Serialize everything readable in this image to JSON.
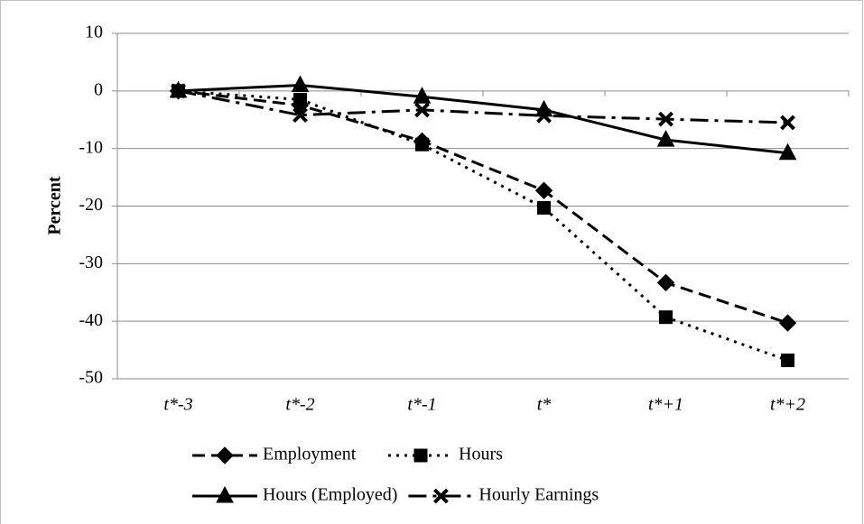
{
  "chart_data": {
    "type": "line",
    "y_label": "Percent",
    "categories": [
      "t*-3",
      "t*-2",
      "t*-1",
      "t*",
      "t*+1",
      "t*+2"
    ],
    "series": [
      {
        "name": "Employment",
        "color": "#000000",
        "dash": "dashed",
        "marker": "diamond",
        "values": [
          0,
          -2.5,
          -8.7,
          -17.3,
          -33.3,
          -40.3
        ]
      },
      {
        "name": "Hours",
        "color": "#000000",
        "dash": "dotted",
        "marker": "square",
        "values": [
          0,
          -1.5,
          -9.3,
          -20.3,
          -39.3,
          -46.8
        ]
      },
      {
        "name": "Hours (Employed)",
        "color": "#000000",
        "dash": "solid",
        "marker": "triangle",
        "values": [
          0,
          1,
          -1,
          -3.3,
          -8.5,
          -10.8
        ]
      },
      {
        "name": "Hourly Earnings",
        "color": "#000000",
        "dash": "dashdot",
        "marker": "x",
        "values": [
          0,
          -4.2,
          -3.3,
          -4.3,
          -4.9,
          -5.5
        ]
      }
    ],
    "ylim": [
      -50,
      10
    ],
    "yticks": [
      -50,
      -40,
      -30,
      -20,
      -10,
      0,
      10
    ],
    "grid": true
  }
}
